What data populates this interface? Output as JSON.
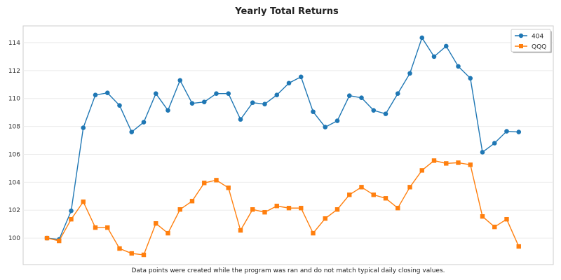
{
  "chart_data": {
    "type": "line",
    "title": "Yearly Total Returns",
    "xlabel": "",
    "ylabel": "",
    "note": "Data points were created while the program was ran and do not match typical daily closing values.",
    "y_ticks": [
      100,
      102,
      104,
      106,
      108,
      110,
      112,
      114
    ],
    "ylim": [
      98.1,
      115.2
    ],
    "grid": true,
    "legend_position": "top-right",
    "series": [
      {
        "name": "404",
        "color": "#1f77b4",
        "marker": "circle",
        "values": [
          100.0,
          99.9,
          101.95,
          107.9,
          110.25,
          110.4,
          109.5,
          107.6,
          108.3,
          110.35,
          109.15,
          111.3,
          109.65,
          109.75,
          110.35,
          110.35,
          108.5,
          109.7,
          109.6,
          110.25,
          111.1,
          111.55,
          109.05,
          107.95,
          108.4,
          110.2,
          110.05,
          109.15,
          108.9,
          110.35,
          111.8,
          114.35,
          113.0,
          113.75,
          112.3,
          111.45,
          106.15,
          106.8,
          107.65,
          107.6
        ]
      },
      {
        "name": "QQQ",
        "color": "#ff7f0e",
        "marker": "square",
        "values": [
          100.0,
          99.8,
          101.35,
          102.6,
          100.75,
          100.75,
          99.25,
          98.9,
          98.8,
          101.05,
          100.35,
          102.05,
          102.65,
          103.95,
          104.15,
          103.6,
          100.55,
          102.05,
          101.85,
          102.3,
          102.15,
          102.15,
          100.35,
          101.4,
          102.05,
          103.1,
          103.65,
          103.1,
          102.85,
          102.15,
          103.65,
          104.85,
          105.55,
          105.35,
          105.4,
          105.25,
          101.55,
          100.8,
          101.35,
          99.4
        ]
      }
    ]
  }
}
